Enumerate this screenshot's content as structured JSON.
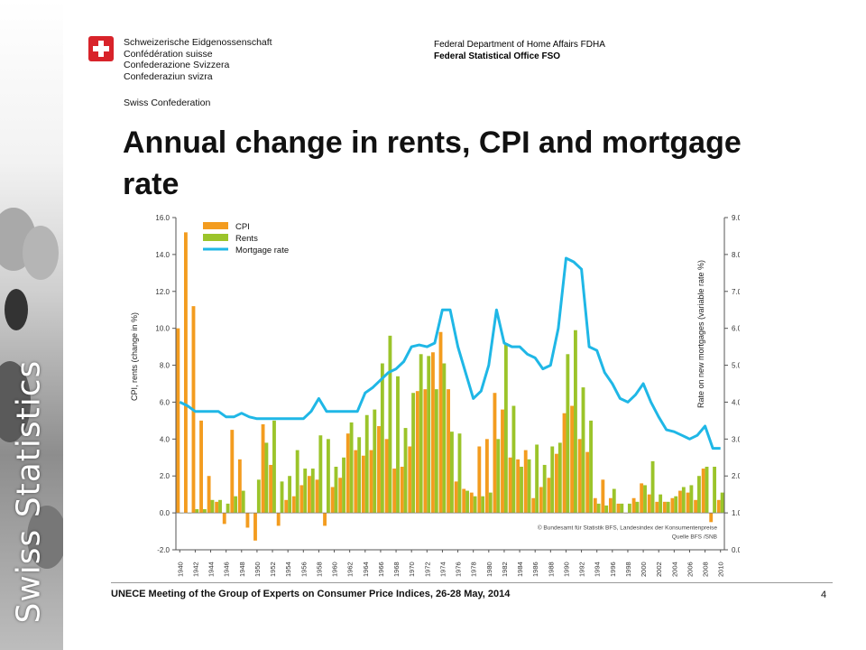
{
  "header": {
    "confederation_lines": [
      "Schweizerische Eidgenossenschaft",
      "Confédération suisse",
      "Confederazione Svizzera",
      "Confederaziun svizra"
    ],
    "confederation_en": "Swiss Confederation",
    "department": "Federal Department of Home Affairs FDHA",
    "office": "Federal Statistical Office FSO"
  },
  "sidebar": {
    "label": "Swiss Statistics"
  },
  "slide": {
    "title": "Annual change in rents, CPI and mortgage rate"
  },
  "footer": {
    "text": "UNECE Meeting of the Group of Experts on Consumer Price Indices, 26-28 May, 2014",
    "page": "4"
  },
  "colors": {
    "cpi": "#f39c1f",
    "rents": "#9bc42a",
    "mortgage": "#1fb7e6",
    "flag": "#d8232a"
  },
  "chart_data": {
    "type": "bar",
    "ylabel": "CPI, rents (change in %)",
    "y2label": "Rate on new mortgages (variable rate %)",
    "ylim": [
      -2,
      16
    ],
    "y2lim": [
      0,
      9
    ],
    "yticks": [
      "16.0",
      "14.0",
      "12.0",
      "10.0",
      "8.0",
      "6.0",
      "4.0",
      "2.0",
      "0.0",
      "-2.0"
    ],
    "y2ticks": [
      "9.0",
      "8.0",
      "7.0",
      "6.0",
      "5.0",
      "4.0",
      "3.0",
      "2.0",
      "1.0",
      "0.0"
    ],
    "xtick_labels": [
      "1940",
      "1942",
      "1944",
      "1946",
      "1948",
      "1950",
      "1952",
      "1954",
      "1956",
      "1958",
      "1960",
      "1962",
      "1964",
      "1966",
      "1968",
      "1970",
      "1972",
      "1974",
      "1976",
      "1978",
      "1980",
      "1982",
      "1984",
      "1986",
      "1988",
      "1990",
      "1992",
      "1994",
      "1996",
      "1998",
      "2000",
      "2002",
      "2004",
      "2006",
      "2008",
      "2010"
    ],
    "legend": [
      "CPI",
      "Rents",
      "Mortgage rate"
    ],
    "legend_position": "top-left",
    "source_note": [
      "© Bundesamt für Statistik BFS, Landesindex der Konsumentenpreise",
      "Quelle BFS /SNB"
    ],
    "years": [
      1940,
      1941,
      1942,
      1943,
      1944,
      1945,
      1946,
      1947,
      1948,
      1949,
      1950,
      1951,
      1952,
      1953,
      1954,
      1955,
      1956,
      1957,
      1958,
      1959,
      1960,
      1961,
      1962,
      1963,
      1964,
      1965,
      1966,
      1967,
      1968,
      1969,
      1970,
      1971,
      1972,
      1973,
      1974,
      1975,
      1976,
      1977,
      1978,
      1979,
      1980,
      1981,
      1982,
      1983,
      1984,
      1985,
      1986,
      1987,
      1988,
      1989,
      1990,
      1991,
      1992,
      1993,
      1994,
      1995,
      1996,
      1997,
      1998,
      1999,
      2000,
      2001,
      2002,
      2003,
      2004,
      2005,
      2006,
      2007,
      2008,
      2009,
      2010
    ],
    "series": [
      {
        "name": "CPI",
        "values": [
          10.0,
          15.2,
          11.2,
          5.0,
          2.0,
          0.6,
          -0.6,
          4.5,
          2.9,
          -0.8,
          -1.5,
          4.8,
          2.6,
          -0.7,
          0.7,
          0.9,
          1.5,
          2.0,
          1.8,
          -0.7,
          1.4,
          1.9,
          4.3,
          3.4,
          3.1,
          3.4,
          4.7,
          4.0,
          2.4,
          2.5,
          3.6,
          6.6,
          6.7,
          8.7,
          9.8,
          6.7,
          1.7,
          1.3,
          1.1,
          3.6,
          4.0,
          6.5,
          5.6,
          3.0,
          2.9,
          3.4,
          0.8,
          1.4,
          1.9,
          3.2,
          5.4,
          5.8,
          4.0,
          3.3,
          0.8,
          1.8,
          0.8,
          0.5,
          0.0,
          0.8,
          1.6,
          1.0,
          0.6,
          0.6,
          0.8,
          1.2,
          1.1,
          0.7,
          2.4,
          -0.5,
          0.7
        ]
      },
      {
        "name": "Rents",
        "values": [
          0.0,
          0.0,
          0.2,
          0.2,
          0.7,
          0.7,
          0.5,
          0.9,
          1.2,
          0.0,
          1.8,
          3.8,
          5.0,
          1.7,
          2.0,
          3.4,
          2.4,
          2.4,
          4.2,
          4.0,
          2.5,
          3.0,
          4.9,
          4.1,
          5.3,
          5.6,
          8.1,
          9.6,
          7.4,
          4.6,
          6.5,
          8.6,
          8.5,
          6.7,
          8.1,
          4.4,
          4.3,
          1.2,
          0.9,
          0.9,
          1.1,
          4.0,
          9.2,
          5.8,
          2.5,
          2.9,
          3.7,
          2.6,
          3.6,
          3.8,
          8.6,
          9.9,
          6.8,
          5.0,
          0.5,
          0.4,
          1.3,
          0.5,
          0.5,
          0.6,
          1.5,
          2.8,
          1.0,
          0.6,
          0.9,
          1.4,
          1.5,
          2.0,
          2.5,
          2.5,
          1.1
        ]
      },
      {
        "name": "Mortgage rate",
        "axis": "right",
        "values": [
          4.0,
          3.9,
          3.75,
          3.75,
          3.75,
          3.75,
          3.6,
          3.6,
          3.7,
          3.6,
          3.55,
          3.55,
          3.55,
          3.55,
          3.55,
          3.55,
          3.55,
          3.75,
          4.1,
          3.75,
          3.75,
          3.75,
          3.75,
          3.75,
          4.25,
          4.4,
          4.6,
          4.8,
          4.9,
          5.1,
          5.5,
          5.55,
          5.5,
          5.6,
          6.5,
          6.5,
          5.5,
          4.8,
          4.1,
          4.3,
          5.0,
          6.5,
          5.6,
          5.5,
          5.5,
          5.3,
          5.2,
          4.9,
          5.0,
          6.0,
          7.9,
          7.8,
          7.6,
          5.5,
          5.4,
          4.8,
          4.5,
          4.1,
          4.0,
          4.2,
          4.5,
          4.0,
          3.6,
          3.25,
          3.2,
          3.1,
          3.0,
          3.1,
          3.35,
          2.75,
          2.75
        ]
      }
    ]
  }
}
